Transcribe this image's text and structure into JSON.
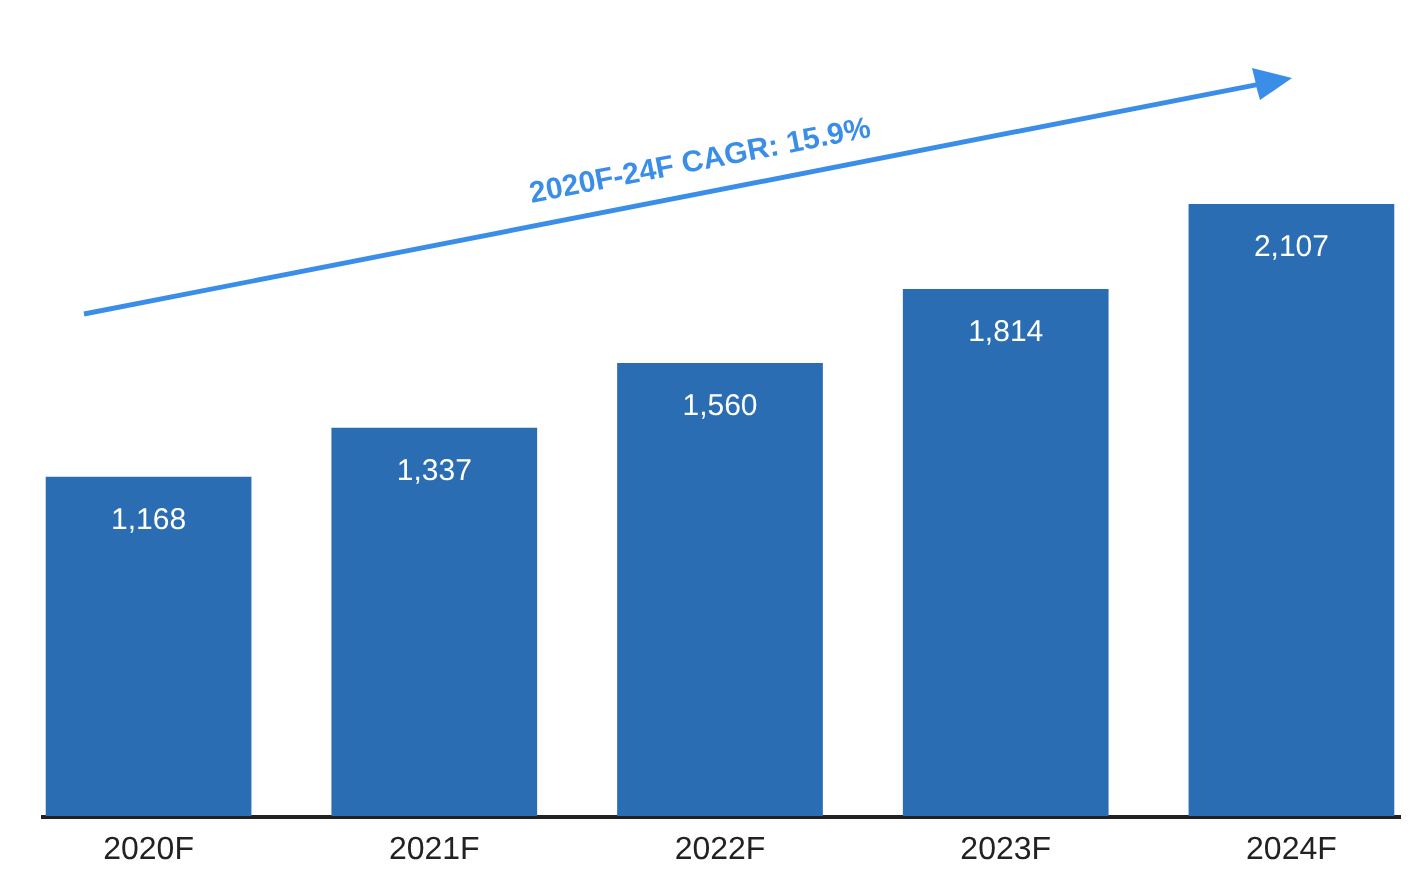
{
  "chart_data": {
    "type": "bar",
    "categories": [
      "2020F",
      "2021F",
      "2022F",
      "2023F",
      "2024F"
    ],
    "values": [
      1168,
      1337,
      1560,
      1814,
      2107
    ],
    "value_labels": [
      "1,168",
      "1,337",
      "1,560",
      "1,814",
      "2,107"
    ],
    "color": "#2a6db3",
    "tick_labels": "x",
    "annotations": [
      "2020F-24F CAGR: 15.9%"
    ]
  }
}
